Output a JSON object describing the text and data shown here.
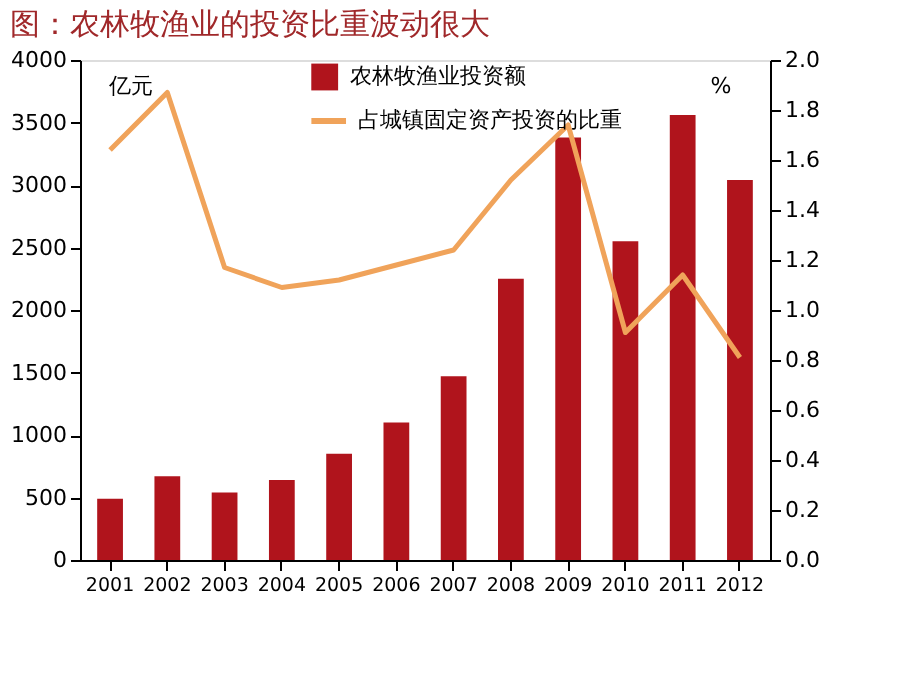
{
  "chart_data": {
    "type": "bar",
    "title": "图：农林牧渔业的投资比重波动很大",
    "categories": [
      "2001",
      "2002",
      "2003",
      "2004",
      "2005",
      "2006",
      "2007",
      "2008",
      "2009",
      "2010",
      "2011",
      "2012"
    ],
    "series": [
      {
        "name": "农林牧渔业投资额",
        "color": "#b0141c",
        "values": [
          490,
          670,
          540,
          640,
          850,
          1100,
          1470,
          2250,
          3380,
          2550,
          3560,
          3040
        ]
      },
      {
        "name": "占城镇固定资产投资的比重",
        "type": "line",
        "axis": "y2",
        "color": "#f0a35a",
        "values": [
          1.64,
          1.87,
          1.17,
          1.09,
          1.12,
          1.18,
          1.24,
          1.52,
          1.74,
          0.91,
          1.14,
          0.81
        ]
      }
    ],
    "ylabel": "亿元",
    "y2label": "%",
    "ylim": [
      0,
      4000
    ],
    "yticks": [
      0,
      500,
      1000,
      1500,
      2000,
      2500,
      3000,
      3500,
      4000
    ],
    "y2lim": [
      0,
      2.0
    ],
    "y2ticks": [
      {
        "value": 0,
        "label": "0.0"
      },
      {
        "value": 0.2,
        "label": "0.2"
      },
      {
        "value": 0.4,
        "label": "0.4"
      },
      {
        "value": 0.6,
        "label": "0.6"
      },
      {
        "value": 0.8,
        "label": "0.8"
      },
      {
        "value": 1.0,
        "label": "1.0"
      },
      {
        "value": 1.2,
        "label": "1.2"
      },
      {
        "value": 1.4,
        "label": "1.4"
      },
      {
        "value": 1.6,
        "label": "1.6"
      },
      {
        "value": 1.8,
        "label": "1.8"
      },
      {
        "value": 2.0,
        "label": "2.0"
      }
    ],
    "legend": "top",
    "grid": false,
    "marker": "none",
    "line_style": "solid"
  }
}
